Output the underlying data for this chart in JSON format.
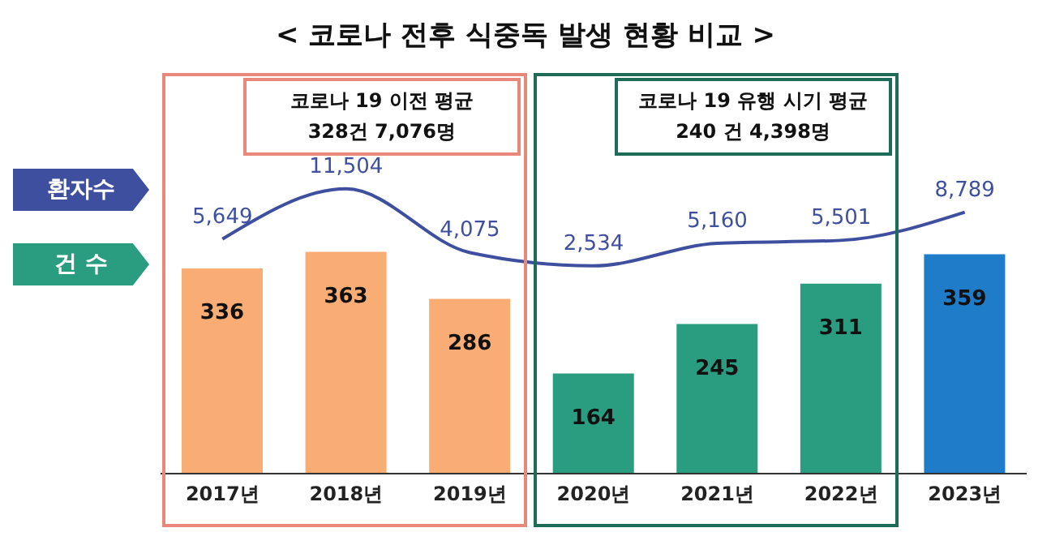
{
  "chart_data": {
    "type": "bar",
    "title": "< 코로나 전후 식중독 발생 현황 비교 >",
    "categories": [
      "2017년",
      "2018년",
      "2019년",
      "2020년",
      "2021년",
      "2022년",
      "2023년"
    ],
    "series": [
      {
        "name": "건 수",
        "color": "#2a9d80",
        "colors": [
          "#f9ad74",
          "#f9ad74",
          "#f9ad74",
          "#2a9d80",
          "#2a9d80",
          "#2a9d80",
          "#1f7cc9"
        ],
        "values": [
          336,
          363,
          286,
          164,
          245,
          311,
          359
        ]
      },
      {
        "type": "line",
        "name": "환자수",
        "color": "#3f4fa0",
        "axis": "y2",
        "values": [
          5649,
          11504,
          4075,
          2534,
          5160,
          5501,
          8789
        ],
        "value_labels": [
          "5,649",
          "11,504",
          "4,075",
          "2,534",
          "5,160",
          "5,501",
          "8,789"
        ]
      }
    ],
    "annotations": [
      "코로나 19 이전 평균\n328건 7,076명",
      "코로나 19 유행 시기 평균\n240 건 4,398명"
    ],
    "data_labels": true,
    "legend": "left",
    "marker": "none"
  }
}
